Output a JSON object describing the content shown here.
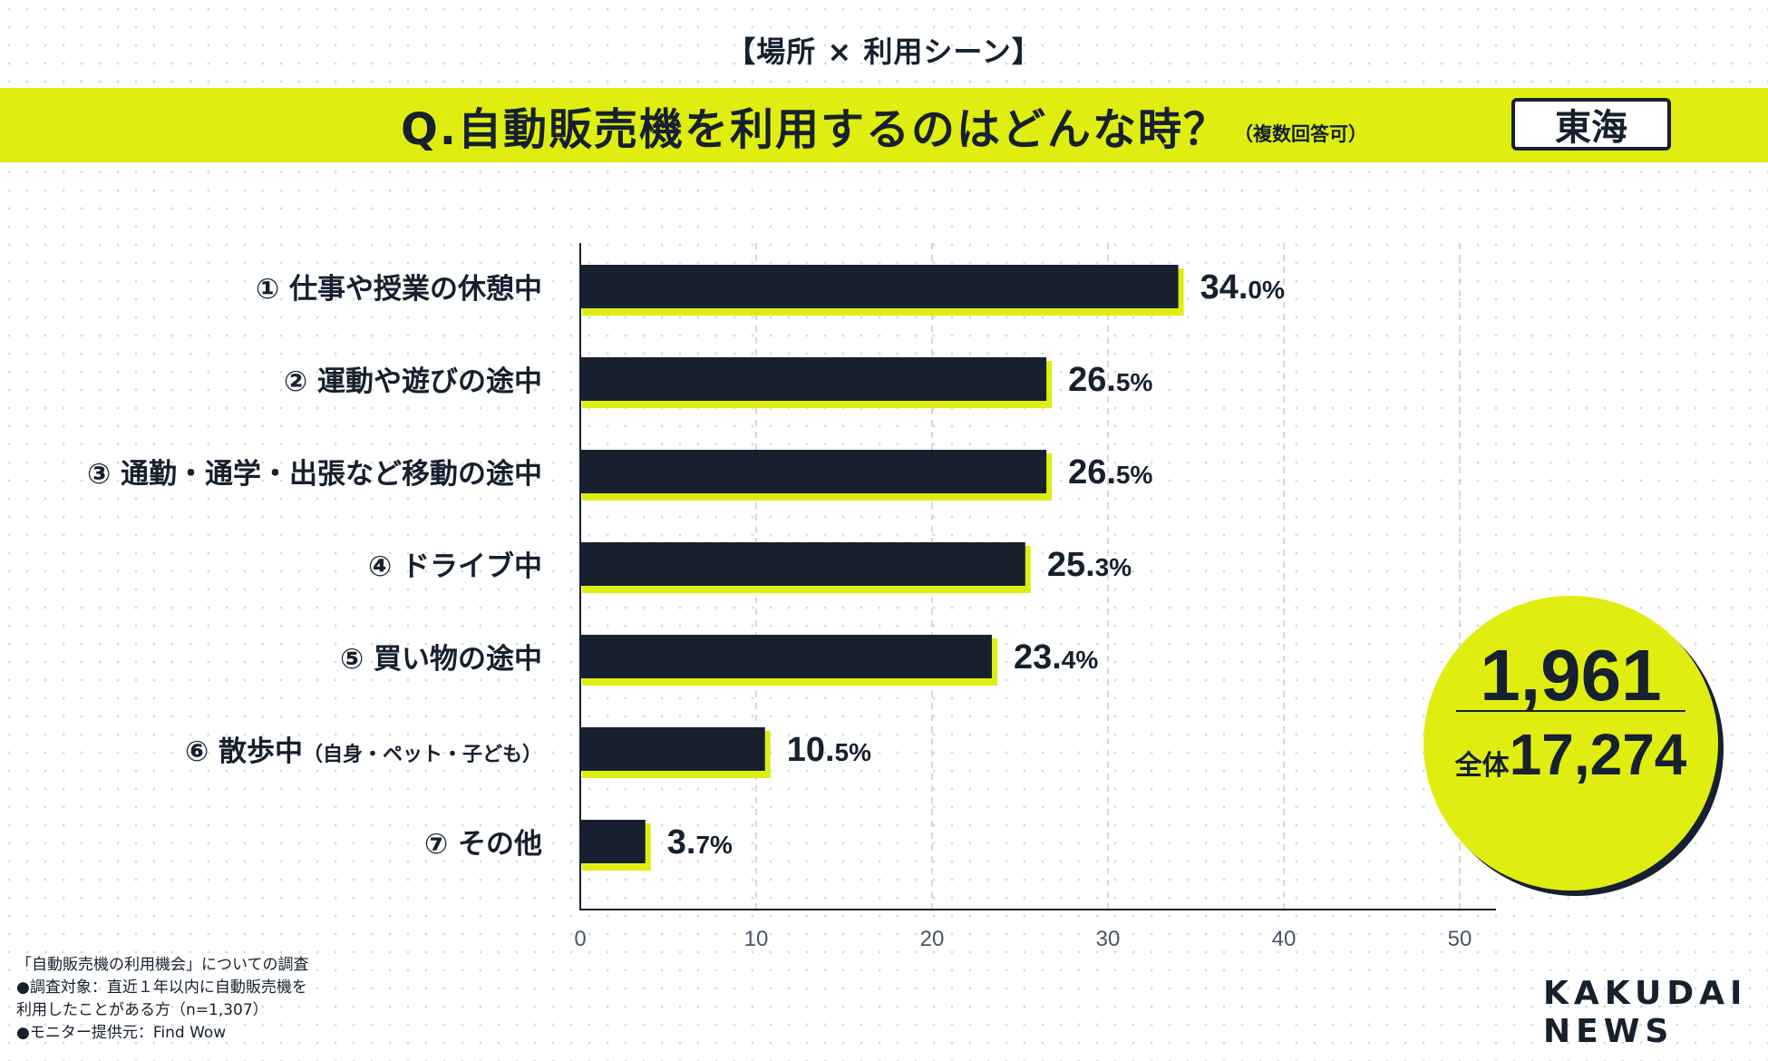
{
  "header": {
    "eyebrow": "【場所 × 利用シーン】",
    "question": "Q.自動販売機を利用するのはどんな時？",
    "question_note": "（複数回答可）",
    "region": "東海"
  },
  "badge": {
    "count": "1,961",
    "total_label": "全体",
    "total_value": "17,274"
  },
  "footnotes": [
    "「自動販売機の利用機会」についての調査",
    "●調査対象：直近１年以内に自動販売機を",
    "利用したことがある方（n=1,307）",
    "●モニター提供元：Find Wow"
  ],
  "logo": {
    "line1": "KAKUDAI",
    "line2": "NEWS"
  },
  "colors": {
    "bar": "#16202e",
    "accent": "#dfee10",
    "axis_text": "#4a5566"
  },
  "chart_data": {
    "type": "bar",
    "orientation": "horizontal",
    "categories": [
      "① 仕事や授業の休憩中",
      "② 運動や遊びの途中",
      "③ 通勤・通学・出張など移動の途中",
      "④ ドライブ中",
      "⑤ 買い物の途中",
      "⑥ 散歩中",
      "⑦ その他"
    ],
    "category_notes": [
      "",
      "",
      "",
      "",
      "",
      "（自身・ペット・子ども）",
      ""
    ],
    "values": [
      34.0,
      26.5,
      26.5,
      25.3,
      23.4,
      10.5,
      3.7
    ],
    "value_labels": [
      {
        "int": "34.",
        "dec": "0%"
      },
      {
        "int": "26.",
        "dec": "5%"
      },
      {
        "int": "26.",
        "dec": "5%"
      },
      {
        "int": "25.",
        "dec": "3%"
      },
      {
        "int": "23.",
        "dec": "4%"
      },
      {
        "int": "10.",
        "dec": "5%"
      },
      {
        "int": "3.",
        "dec": "7%"
      }
    ],
    "xlim": [
      0,
      50
    ],
    "xticks": [
      0,
      10,
      20,
      30,
      40,
      50
    ],
    "grid": "vertical dashed"
  }
}
